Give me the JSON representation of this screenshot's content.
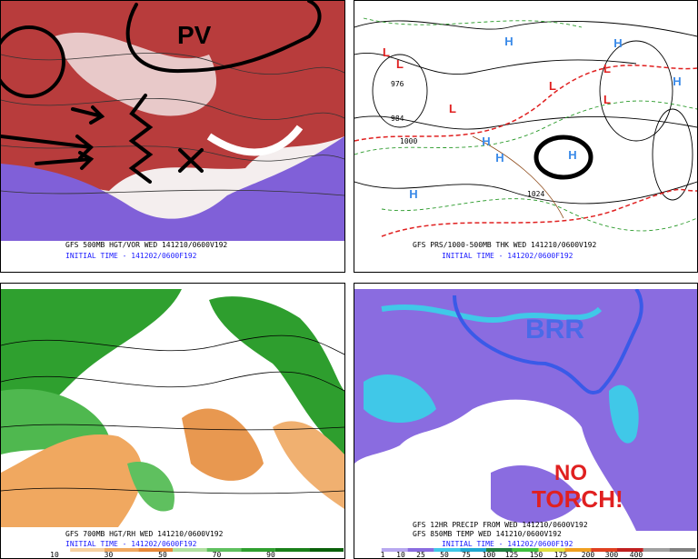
{
  "panels": [
    {
      "captions": [
        "GFS 500MB HGT/VOR WED 141210/0600V192",
        "INITIAL TIME - 141202/0600F192"
      ],
      "annotations": [
        "PV",
        "X"
      ]
    },
    {
      "captions": [
        "GFS PRS/1000-500MB THK WED 141210/0600V192",
        "INITIAL TIME - 141202/0600F192"
      ],
      "pressure_centers": [
        "H",
        "H",
        "H",
        "H",
        "H",
        "H",
        "H",
        "L",
        "L",
        "L",
        "L",
        "L",
        "L"
      ],
      "contour_labels": [
        "976",
        "984",
        "1000",
        "1024"
      ]
    },
    {
      "captions": [
        "GFS 700MB HGT/RH WED 141210/0600V192",
        "INITIAL TIME - 141202/0600F192"
      ],
      "colorbar": [
        10,
        30,
        50,
        70,
        90
      ]
    },
    {
      "captions": [
        "GFS 12HR PRECIP FROM WED 141210/0600V192",
        "GFS 850MB TEMP WED 141210/0600V192",
        "INITIAL TIME - 141202/0600F192"
      ],
      "annotations": [
        "BRR",
        "NO",
        "TORCH!"
      ],
      "colorbar": [
        1,
        10,
        25,
        50,
        75,
        100,
        125,
        150,
        175,
        200,
        300,
        400
      ]
    }
  ]
}
